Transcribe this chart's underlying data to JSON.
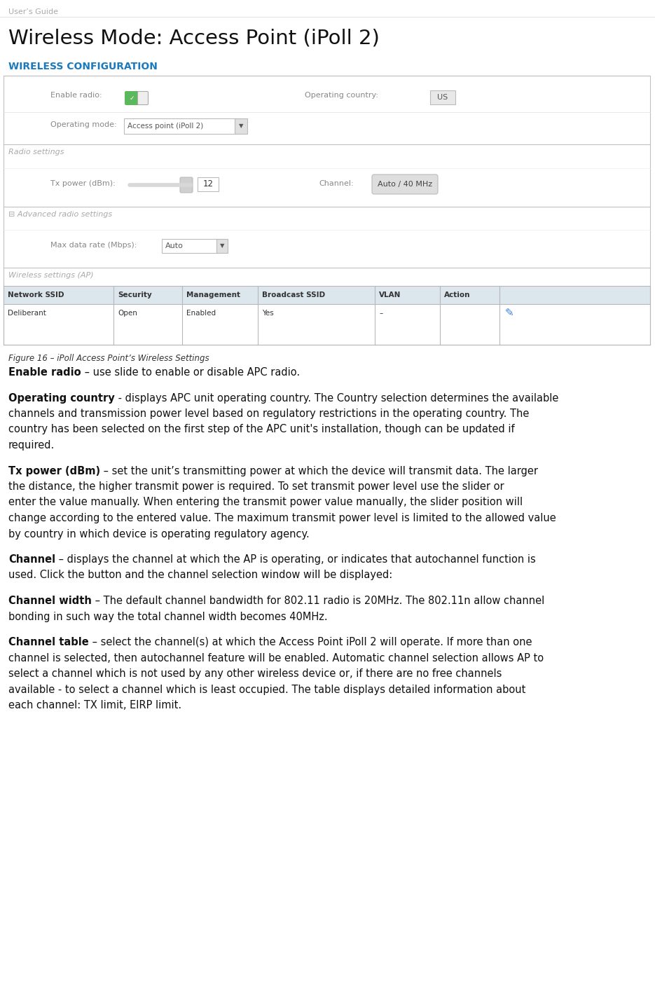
{
  "page_header": "User’s Guide",
  "title": "Wireless Mode: Access Point (iPoll 2)",
  "section_label": "WIRELESS CONFIGURATION",
  "section_label_color": "#1a7abf",
  "bg_color": "#ffffff",
  "figure_caption": "Figure 16 – iPoll Access Point’s Wireless Settings",
  "paragraphs": [
    {
      "bold": "Enable radio",
      "rest": " – use slide to enable or disable APC radio."
    },
    {
      "bold": "Operating country",
      "rest": " - displays APC unit operating country. The Country selection determines the available channels and transmission power level based on regulatory restrictions in the operating country. The country has been selected on the first step of the APC unit's installation, though can be updated if required."
    },
    {
      "bold": "Tx power (dBm)",
      "rest": " – set the unit’s transmitting power at which the device will transmit data. The larger the distance, the higher transmit power is required. To set transmit power level use the slider or enter the value manually. When entering the transmit power value manually, the slider position will change according to the entered value. The maximum transmit power level is limited to the allowed value by country in which device is operating regulatory agency."
    },
    {
      "bold": "Channel",
      "rest": " – displays the channel at which the AP is operating, or indicates that autochannel function is used. Click the button and the channel selection window will be displayed:"
    },
    {
      "bold": "Channel width",
      "rest": " – The default channel bandwidth for 802.11 radio is 20MHz. The 802.11n allow channel bonding in such way the total channel width becomes 40MHz."
    },
    {
      "bold": "Channel table",
      "rest": " – select the channel(s) at which the Access Point iPoll 2 will operate. If more than one channel is selected, then autochannel feature will be enabled. Automatic channel selection allows AP to select a channel which is not used by any other wireless device or, if there are no free channels available - to select a channel which is least occupied. The table displays detailed information about each channel: TX limit, EIRP limit."
    }
  ]
}
